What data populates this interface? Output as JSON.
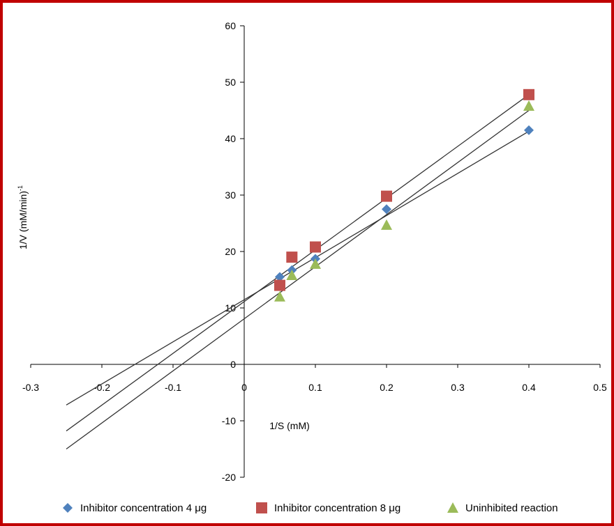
{
  "chart_data": {
    "type": "scatter",
    "xlabel": "1/S (mM)",
    "ylabel": "1/V (mM/min)",
    "ylabel_superscript": "-1",
    "xlim": [
      -0.3,
      0.5
    ],
    "ylim": [
      -20,
      60
    ],
    "x_ticks": [
      "-0.3",
      "-0.2",
      "-0.1",
      "0",
      "0.1",
      "0.2",
      "0.3",
      "0.4",
      "0.5"
    ],
    "x_tick_values": [
      -0.3,
      -0.2,
      -0.1,
      0,
      0.1,
      0.2,
      0.3,
      0.4,
      0.5
    ],
    "y_ticks": [
      "-20",
      "-10",
      "0",
      "10",
      "20",
      "30",
      "40",
      "50",
      "60"
    ],
    "y_tick_values": [
      -20,
      -10,
      0,
      10,
      20,
      30,
      40,
      50,
      60
    ],
    "grid": false,
    "legend_position": "bottom",
    "series": [
      {
        "name": "Inhibitor concentration 4 μg",
        "marker": "diamond",
        "color": "#4f81bd",
        "x": [
          0.05,
          0.067,
          0.1,
          0.2,
          0.4
        ],
        "y": [
          15.5,
          16.7,
          18.7,
          27.5,
          41.5
        ],
        "trendline": {
          "x_start": -0.25,
          "x_end": 0.4,
          "y_start": -7.2,
          "y_end": 41.3
        }
      },
      {
        "name": "Inhibitor concentration 8 μg",
        "marker": "square",
        "color": "#c0504d",
        "x": [
          0.05,
          0.067,
          0.1,
          0.2,
          0.4
        ],
        "y": [
          14.0,
          19.0,
          20.8,
          29.8,
          47.8
        ],
        "trendline": {
          "x_start": -0.25,
          "x_end": 0.4,
          "y_start": -11.8,
          "y_end": 47.8
        }
      },
      {
        "name": "Uninhibited reaction",
        "marker": "triangle",
        "color": "#9bbb59",
        "x": [
          0.05,
          0.067,
          0.1,
          0.2,
          0.4
        ],
        "y": [
          12.0,
          15.8,
          17.8,
          24.7,
          45.8
        ],
        "trendline": {
          "x_start": -0.25,
          "x_end": 0.4,
          "y_start": -15.0,
          "y_end": 45.0
        }
      }
    ]
  }
}
